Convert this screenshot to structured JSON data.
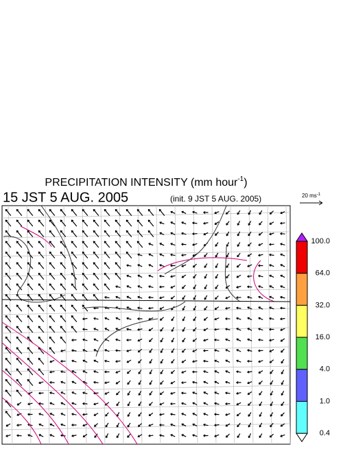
{
  "title": {
    "main": "PRECIPITATION INTENSITY (mm hour",
    "sup": "-1",
    "close": ")"
  },
  "valid_time": "15 JST 5 AUG. 2005",
  "init_time": "(init. 9 JST 5 AUG. 2005)",
  "reference_vector": {
    "label": "20 ms",
    "sup": "-1"
  },
  "colorbar": {
    "levels": [
      {
        "value": 100,
        "label": "100.0"
      },
      {
        "value": 64,
        "label": "64.0"
      },
      {
        "value": 32,
        "label": "32.0"
      },
      {
        "value": 16,
        "label": "16.0"
      },
      {
        "value": 4,
        "label": "4.0"
      },
      {
        "value": 1,
        "label": "1.0"
      },
      {
        "value": 0.4,
        "label": "0.4"
      }
    ],
    "colors": [
      "#ee0000",
      "#ffa040",
      "#ffff60",
      "#50e050",
      "#6060ff",
      "#60ffff"
    ],
    "over_color": "#b020ff",
    "under_color": "#ffffff"
  }
}
